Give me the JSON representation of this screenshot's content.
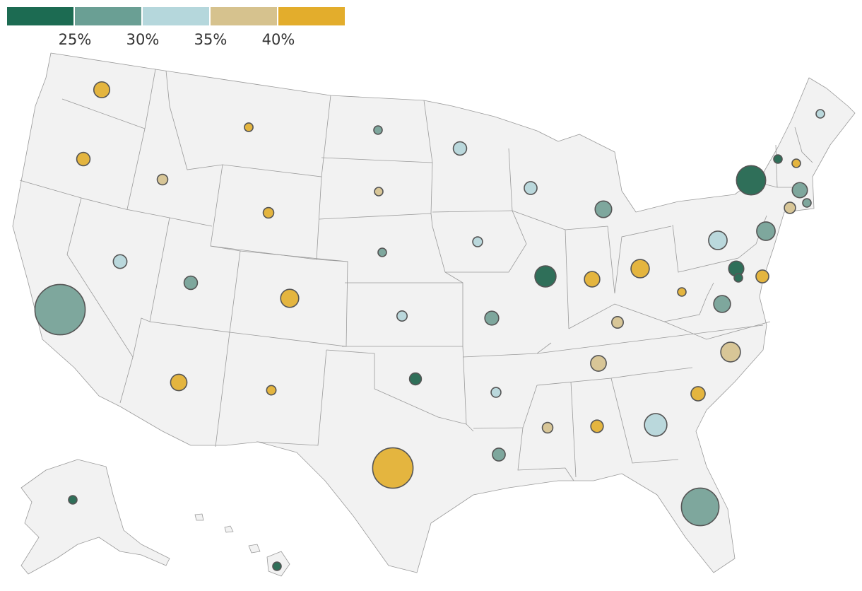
{
  "legend": {
    "bins": [
      {
        "label": "",
        "color": "#1c6b52"
      },
      {
        "label": "25%",
        "color": "#6a9f94"
      },
      {
        "label": "30%",
        "color": "#b5d7dc"
      },
      {
        "label": "35%",
        "color": "#d6c28e"
      },
      {
        "label": "40%",
        "color": "#e3ad2c"
      }
    ]
  },
  "bubble_colors": {
    "bin1": "#2f6f59",
    "bin2": "#7ea79d",
    "bin3": "#bad8dc",
    "bin4": "#d8c697",
    "bin5": "#e4b53f"
  },
  "states": [
    {
      "id": "WA",
      "bin": 5,
      "size": 3.4
    },
    {
      "id": "OR",
      "bin": 5,
      "size": 2.4
    },
    {
      "id": "CA",
      "bin": 2,
      "size": 34.0
    },
    {
      "id": "NV",
      "bin": 3,
      "size": 2.5
    },
    {
      "id": "ID",
      "bin": 4,
      "size": 1.5
    },
    {
      "id": "MT",
      "bin": 5,
      "size": 1.0
    },
    {
      "id": "WY",
      "bin": 5,
      "size": 1.5
    },
    {
      "id": "UT",
      "bin": 2,
      "size": 2.4
    },
    {
      "id": "CO",
      "bin": 5,
      "size": 4.4
    },
    {
      "id": "AZ",
      "bin": 5,
      "size": 3.6
    },
    {
      "id": "NM",
      "bin": 5,
      "size": 1.2
    },
    {
      "id": "ND",
      "bin": 2,
      "size": 0.5
    },
    {
      "id": "SD",
      "bin": 4,
      "size": 0.6
    },
    {
      "id": "NE",
      "bin": 2,
      "size": 0.9
    },
    {
      "id": "KS",
      "bin": 3,
      "size": 1.4
    },
    {
      "id": "OK",
      "bin": 1,
      "size": 1.9
    },
    {
      "id": "TX",
      "bin": 5,
      "size": 22.0
    },
    {
      "id": "MN",
      "bin": 3,
      "size": 2.4
    },
    {
      "id": "IA",
      "bin": 3,
      "size": 1.3
    },
    {
      "id": "MO",
      "bin": 2,
      "size": 2.6
    },
    {
      "id": "AR",
      "bin": 3,
      "size": 1.3
    },
    {
      "id": "LA",
      "bin": 2,
      "size": 2.2
    },
    {
      "id": "WI",
      "bin": 3,
      "size": 2.2
    },
    {
      "id": "IL",
      "bin": 1,
      "size": 6.0
    },
    {
      "id": "MI",
      "bin": 2,
      "size": 3.7
    },
    {
      "id": "IN",
      "bin": 5,
      "size": 3.2
    },
    {
      "id": "OH",
      "bin": 5,
      "size": 4.5
    },
    {
      "id": "KY",
      "bin": 4,
      "size": 1.8
    },
    {
      "id": "TN",
      "bin": 4,
      "size": 3.3
    },
    {
      "id": "MS",
      "bin": 4,
      "size": 1.5
    },
    {
      "id": "AL",
      "bin": 5,
      "size": 2.1
    },
    {
      "id": "GA",
      "bin": 3,
      "size": 6.8
    },
    {
      "id": "FL",
      "bin": 2,
      "size": 19.0
    },
    {
      "id": "SC",
      "bin": 5,
      "size": 2.7
    },
    {
      "id": "NC",
      "bin": 4,
      "size": 5.2
    },
    {
      "id": "VA",
      "bin": 2,
      "size": 3.8
    },
    {
      "id": "WV",
      "bin": 5,
      "size": 0.7
    },
    {
      "id": "PA",
      "bin": 3,
      "size": 4.6
    },
    {
      "id": "NY",
      "bin": 1,
      "size": 11.5
    },
    {
      "id": "NJ",
      "bin": 2,
      "size": 4.6
    },
    {
      "id": "MD",
      "bin": 1,
      "size": 3.1
    },
    {
      "id": "DE",
      "bin": 5,
      "size": 2.2
    },
    {
      "id": "DC",
      "bin": 1,
      "size": 0.6
    },
    {
      "id": "CT",
      "bin": 4,
      "size": 1.7
    },
    {
      "id": "RI",
      "bin": 2,
      "size": 0.6
    },
    {
      "id": "MA",
      "bin": 2,
      "size": 3.1
    },
    {
      "id": "VT",
      "bin": 1,
      "size": 0.4
    },
    {
      "id": "NH",
      "bin": 5,
      "size": 0.7
    },
    {
      "id": "ME",
      "bin": 3,
      "size": 0.7
    },
    {
      "id": "AK",
      "bin": 1,
      "size": 0.5
    },
    {
      "id": "HI",
      "bin": 1,
      "size": 0.8
    }
  ]
}
